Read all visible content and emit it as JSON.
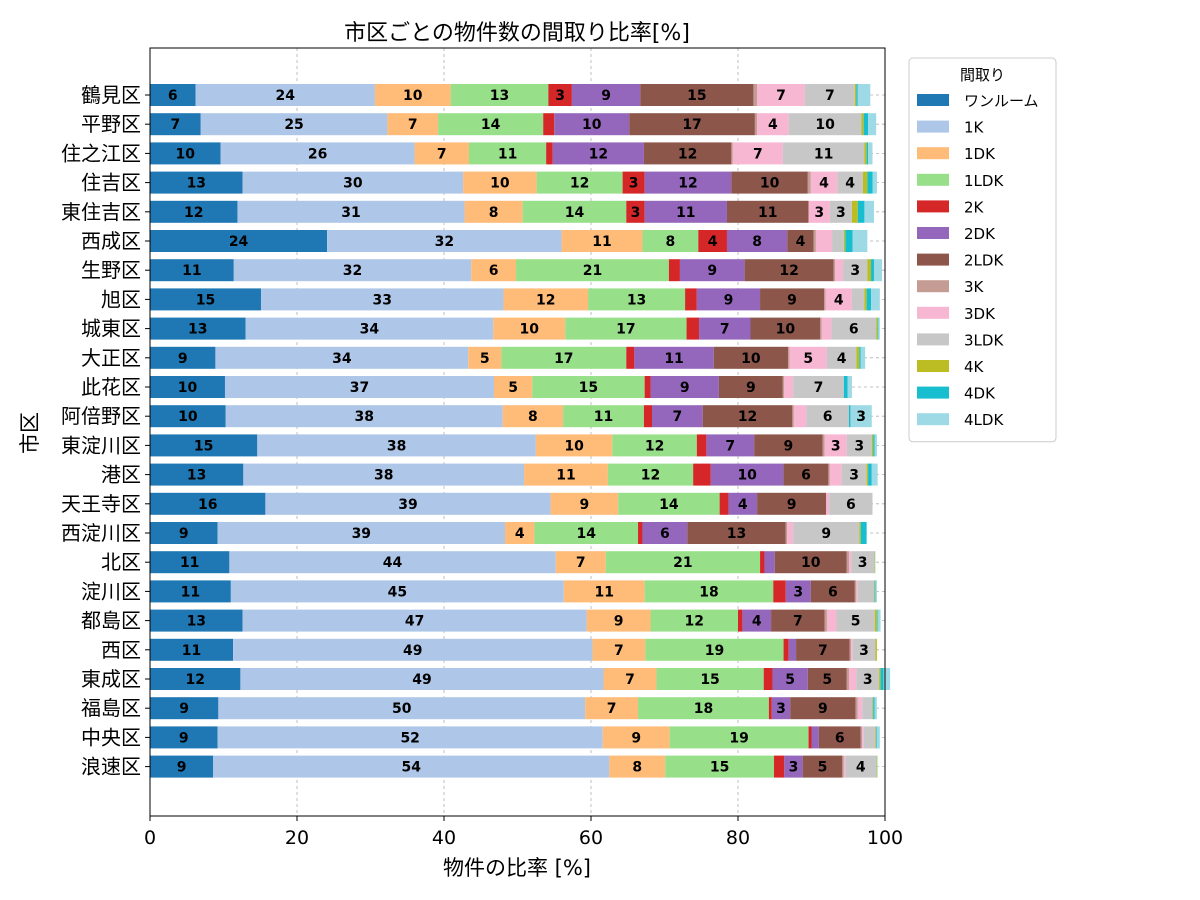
{
  "chart_data": {
    "type": "bar",
    "orientation": "horizontal",
    "stacked": true,
    "title": "市区ごとの物件数の間取り比率[%]",
    "xlabel": "物件の比率 [%]",
    "ylabel": "市区",
    "xlim": [
      0,
      100
    ],
    "xticks": [
      "0",
      "20",
      "40",
      "60",
      "80",
      "100"
    ],
    "grid": true,
    "legend_title": "間取り",
    "legend_position": "upper-right-outside",
    "categories": [
      "鶴見区",
      "平野区",
      "住之江区",
      "住吉区",
      "東住吉区",
      "西成区",
      "生野区",
      "旭区",
      "城東区",
      "大正区",
      "此花区",
      "阿倍野区",
      "東淀川区",
      "港区",
      "天王寺区",
      "西淀川区",
      "北区",
      "淀川区",
      "都島区",
      "西区",
      "東成区",
      "福島区",
      "中央区",
      "浪速区"
    ],
    "series": [
      {
        "name": "ワンルーム",
        "color": "#1f77b4",
        "values": [
          6.2,
          6.9,
          9.6,
          12.6,
          11.9,
          24.1,
          11.4,
          15.1,
          13.0,
          8.9,
          10.2,
          10.3,
          14.6,
          12.7,
          15.7,
          9.2,
          10.8,
          11.0,
          12.6,
          11.3,
          12.3,
          9.3,
          9.2,
          8.6
        ]
      },
      {
        "name": "1K",
        "color": "#aec7e8",
        "values": [
          24.4,
          25.4,
          26.4,
          30.0,
          30.9,
          31.9,
          32.3,
          33.0,
          33.7,
          34.4,
          36.6,
          37.7,
          37.9,
          38.2,
          38.8,
          39.1,
          44.4,
          45.3,
          46.8,
          48.9,
          49.4,
          49.9,
          52.4,
          53.9
        ]
      },
      {
        "name": "1DK",
        "color": "#ffbb78",
        "values": [
          10.3,
          6.9,
          7.4,
          10.0,
          7.9,
          11.0,
          6.1,
          11.5,
          9.8,
          4.5,
          5.2,
          8.2,
          10.4,
          11.4,
          9.2,
          4.0,
          6.8,
          11.0,
          8.7,
          7.2,
          7.2,
          7.2,
          9.1,
          7.6
        ]
      },
      {
        "name": "1LDK",
        "color": "#98df8a",
        "values": [
          13.3,
          14.3,
          10.5,
          11.7,
          14.1,
          7.6,
          20.8,
          13.2,
          16.5,
          17.0,
          15.3,
          11.0,
          11.5,
          11.6,
          13.8,
          14.1,
          21.0,
          17.5,
          11.9,
          18.8,
          14.6,
          17.8,
          18.9,
          14.8
        ]
      },
      {
        "name": "2K",
        "color": "#d62728",
        "values": [
          3.2,
          1.5,
          0.9,
          3.0,
          2.5,
          3.9,
          1.5,
          1.6,
          1.7,
          1.1,
          0.8,
          1.1,
          1.3,
          2.4,
          1.2,
          0.6,
          0.6,
          1.7,
          0.6,
          0.7,
          1.2,
          0.4,
          0.4,
          1.4
        ]
      },
      {
        "name": "2DK",
        "color": "#9467bd",
        "values": [
          9.3,
          10.2,
          12.4,
          11.8,
          11.2,
          8.2,
          8.8,
          8.6,
          7.0,
          10.8,
          9.3,
          6.9,
          6.5,
          9.9,
          3.9,
          6.1,
          1.4,
          3.4,
          3.9,
          1.0,
          4.8,
          2.5,
          1.0,
          2.5
        ]
      },
      {
        "name": "2LDK",
        "color": "#8c564b",
        "values": [
          15.4,
          17.1,
          11.9,
          10.4,
          11.1,
          3.6,
          12.1,
          8.7,
          9.5,
          10.1,
          8.7,
          12.2,
          9.3,
          6.1,
          9.4,
          13.4,
          9.8,
          6.0,
          7.3,
          7.3,
          5.3,
          8.9,
          5.7,
          5.4
        ]
      },
      {
        "name": "3K",
        "color": "#c49c94",
        "values": [
          0.5,
          0.3,
          0.2,
          0.4,
          0.0,
          0.3,
          0.2,
          0.2,
          0.2,
          0.2,
          0.2,
          0.2,
          0.3,
          0.2,
          0.0,
          0.2,
          0.3,
          0.2,
          0.3,
          0.2,
          0.3,
          0.3,
          0.2,
          0.2
        ]
      },
      {
        "name": "3DK",
        "color": "#f7b6d2",
        "values": [
          6.5,
          4.3,
          6.8,
          3.6,
          2.9,
          2.2,
          1.1,
          3.6,
          1.3,
          5.1,
          1.2,
          1.7,
          3.0,
          1.6,
          0.4,
          0.8,
          0.3,
          0.2,
          1.3,
          0.2,
          1.0,
          0.6,
          0.2,
          0.2
        ]
      },
      {
        "name": "3LDK",
        "color": "#c7c7c7",
        "values": [
          6.8,
          9.9,
          11.1,
          3.5,
          3.0,
          1.6,
          3.3,
          1.7,
          6.1,
          4.0,
          6.9,
          5.8,
          3.4,
          3.4,
          5.9,
          9.0,
          3.1,
          2.2,
          5.2,
          3.1,
          3.1,
          1.4,
          1.6,
          4.2
        ]
      },
      {
        "name": "4K",
        "color": "#bcbd22",
        "values": [
          0.2,
          0.3,
          0.3,
          0.6,
          0.8,
          0.2,
          0.5,
          0.3,
          0.2,
          0.4,
          0.0,
          0.0,
          0.2,
          0.2,
          0.0,
          0.2,
          0.1,
          0.1,
          0.3,
          0.2,
          0.2,
          0.1,
          0.1,
          0.1
        ]
      },
      {
        "name": "4DK",
        "color": "#17becf",
        "values": [
          0.2,
          0.6,
          0.2,
          0.7,
          0.9,
          1.0,
          0.4,
          0.6,
          0.1,
          0.2,
          0.5,
          0.2,
          0.2,
          0.5,
          0.0,
          0.8,
          0.0,
          0.1,
          0.1,
          0.0,
          0.4,
          0.2,
          0.1,
          0.0
        ]
      },
      {
        "name": "4LDK",
        "color": "#9edae5",
        "values": [
          1.7,
          1.1,
          0.6,
          0.6,
          1.3,
          2.0,
          1.1,
          1.2,
          0.2,
          0.6,
          0.6,
          2.9,
          0.3,
          0.8,
          0.0,
          0.0,
          0.1,
          0.2,
          0.4,
          0.0,
          0.9,
          0.3,
          0.4,
          0.1
        ]
      }
    ]
  }
}
